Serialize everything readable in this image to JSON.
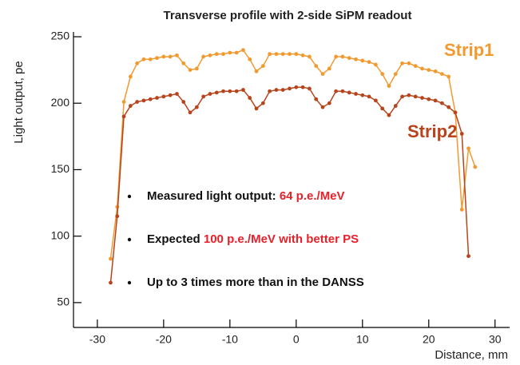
{
  "chart_data": {
    "type": "line",
    "title": "Transverse profile with 2-side SiPM readout",
    "x_label": "Distance, mm",
    "y_label": "Light output, pe",
    "x": [
      -28,
      -27,
      -26,
      -25,
      -24,
      -23,
      -22,
      -21,
      -20,
      -19,
      -18,
      -17,
      -16,
      -15,
      -14,
      -13,
      -12,
      -11,
      -10,
      -9,
      -8,
      -7,
      -6,
      -5,
      -4,
      -3,
      -2,
      -1,
      0,
      1,
      2,
      3,
      4,
      5,
      6,
      7,
      8,
      9,
      10,
      11,
      12,
      13,
      14,
      15,
      16,
      17,
      18,
      19,
      20,
      21,
      22,
      23,
      24,
      25,
      26,
      27
    ],
    "series": [
      {
        "name": "Strip1",
        "color": "#f29a30",
        "values": [
          83,
          122,
          201,
          220,
          230,
          233,
          233,
          234,
          235,
          235,
          236,
          230,
          225,
          226,
          235,
          236,
          237,
          237,
          238,
          238,
          240,
          233,
          224,
          228,
          237,
          237,
          237,
          237,
          237,
          236,
          235,
          228,
          222,
          226,
          235,
          235,
          234,
          233,
          232,
          231,
          229,
          222,
          213,
          222,
          230,
          230,
          228,
          226,
          225,
          224,
          222,
          220,
          193,
          120,
          166,
          152
        ]
      },
      {
        "name": "Strip2",
        "color": "#b8441c",
        "values": [
          65,
          115,
          190,
          198,
          201,
          202,
          203,
          204,
          205,
          206,
          207,
          201,
          193,
          197,
          205,
          207,
          208,
          209,
          209,
          209,
          210,
          204,
          196,
          200,
          209,
          210,
          210,
          211,
          212,
          212,
          211,
          203,
          197,
          200,
          209,
          209,
          208,
          207,
          206,
          205,
          202,
          196,
          191,
          198,
          205,
          206,
          205,
          204,
          203,
          202,
          200,
          197,
          193,
          177,
          85,
          null
        ]
      }
    ],
    "xlim": [
      -33.6,
      32.2
    ],
    "ylim": [
      31.3,
      253.6
    ],
    "xticks": [
      -30,
      -20,
      -10,
      0,
      10,
      20,
      30
    ],
    "yticks": [
      50,
      100,
      150,
      200,
      250
    ],
    "annotations": [
      [
        {
          "text": "Measured light output: ",
          "color": "#111111"
        },
        {
          "text": "64 p.e./MeV",
          "color": "#e8202a"
        }
      ],
      [
        {
          "text": "Expected ",
          "color": "#111111"
        },
        {
          "text": "100 p.e./MeV with better PS",
          "color": "#e8202a"
        }
      ],
      [
        {
          "text": "Up to 3 times more than in the DANSS",
          "color": "#111111"
        }
      ]
    ]
  }
}
